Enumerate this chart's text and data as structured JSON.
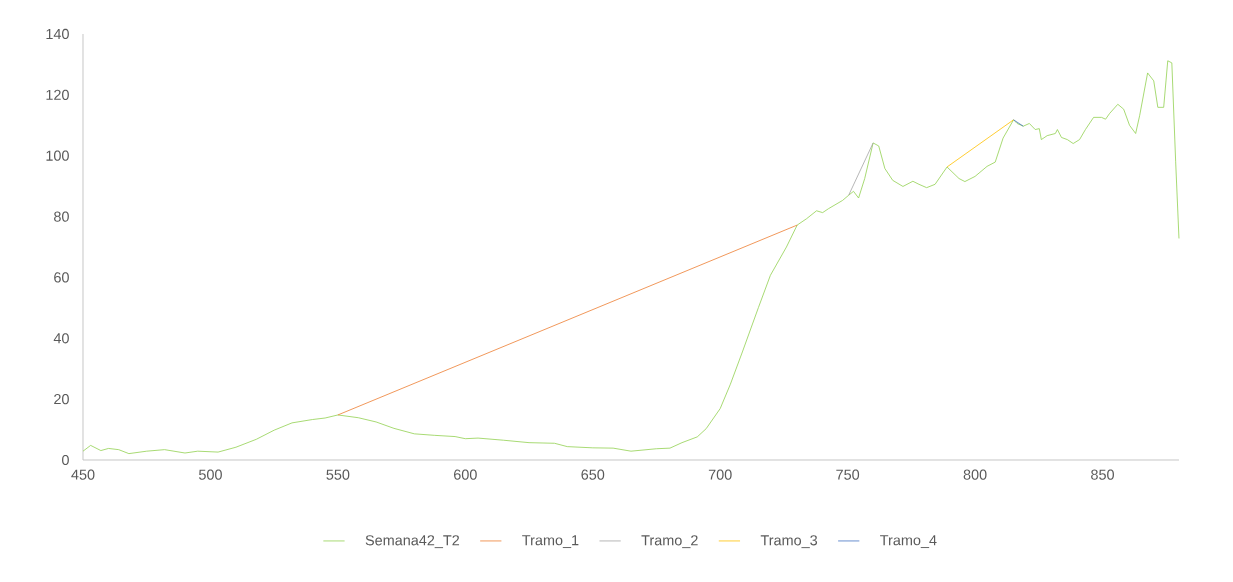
{
  "chart_data": {
    "type": "line",
    "xlim": [
      450,
      880
    ],
    "ylim": [
      0,
      140
    ],
    "xticks": [
      450,
      500,
      550,
      600,
      650,
      700,
      750,
      800,
      850
    ],
    "yticks": [
      0,
      20,
      40,
      60,
      80,
      100,
      120,
      140
    ],
    "grid": false,
    "legend": "bottom",
    "marker": "none",
    "line_style": "solid",
    "series": [
      {
        "name": "Semana42_T2",
        "color": "#92d050",
        "x": [
          450,
          453,
          457,
          460,
          464,
          468,
          475,
          482,
          490,
          495,
          503,
          510,
          518,
          525,
          532,
          540,
          545,
          550,
          558,
          565,
          572,
          580,
          588,
          596,
          600,
          605,
          615,
          625,
          635,
          640,
          650,
          658,
          665,
          675,
          680.3,
          685,
          691,
          694.5,
          700,
          704,
          708.7,
          715,
          719.7,
          726,
          730.2,
          733.9,
          737.8,
          740.2,
          742.5,
          748,
          750.4,
          752.3,
          754.3,
          756.7,
          760,
          762.2,
          764.6,
          767.7,
          771.7,
          775.6,
          778,
          781,
          784.3,
          789,
          793.7,
          796,
          800,
          804.7,
          807.9,
          811,
          815.1,
          816.5,
          818.9,
          821.3,
          823.6,
          825.2,
          826,
          828.3,
          831.5,
          832.3,
          833.9,
          836.2,
          838.5,
          841,
          843.3,
          846.5,
          849.6,
          851.2,
          852.8,
          856,
          858.3,
          860.6,
          863,
          864.6,
          867.7,
          870.1,
          871.7,
          874,
          875.6,
          877.2,
          878.7,
          880
        ],
        "values": [
          2.9,
          4.8,
          3.1,
          3.8,
          3.4,
          2.1,
          2.9,
          3.4,
          2.3,
          2.9,
          2.6,
          4.2,
          6.8,
          9.8,
          12.2,
          13.3,
          13.8,
          14.8,
          13.9,
          12.5,
          10.4,
          8.6,
          8.1,
          7.7,
          7.0,
          7.2,
          6.5,
          5.7,
          5.5,
          4.4,
          4.0,
          3.9,
          2.9,
          3.7,
          3.9,
          5.7,
          7.6,
          10.3,
          16.9,
          24.9,
          35.5,
          50.1,
          60.7,
          70,
          77.2,
          79.3,
          81.9,
          81.3,
          82.6,
          85.3,
          87,
          88.3,
          86.1,
          92.5,
          104.2,
          103.2,
          95.8,
          91.9,
          89.9,
          91.6,
          90.6,
          89.5,
          90.6,
          96.3,
          92.5,
          91.5,
          93.2,
          96.5,
          97.9,
          105.8,
          111.8,
          110.6,
          109.7,
          110.6,
          108.6,
          108.9,
          105.3,
          106.6,
          107.3,
          108.6,
          106,
          105.3,
          104,
          105.3,
          108.6,
          112.6,
          112.6,
          112,
          113.9,
          116.9,
          115.3,
          110,
          107.3,
          113.3,
          127.2,
          124.6,
          115.9,
          115.9,
          131.2,
          130.5,
          98,
          72.8
        ]
      },
      {
        "name": "Tramo_1",
        "color": "#ed7d31",
        "x": [
          550,
          730.2
        ],
        "values": [
          14.8,
          77.2
        ]
      },
      {
        "name": "Tramo_2",
        "color": "#a5a5a5",
        "x": [
          750.4,
          760
        ],
        "values": [
          87,
          104.2
        ]
      },
      {
        "name": "Tramo_3",
        "color": "#ffc000",
        "x": [
          789,
          815.1
        ],
        "values": [
          96.3,
          111.8
        ]
      },
      {
        "name": "Tramo_4",
        "color": "#4472c4",
        "x": [
          815.1,
          818.9
        ],
        "values": [
          111.8,
          109.7
        ]
      }
    ]
  }
}
